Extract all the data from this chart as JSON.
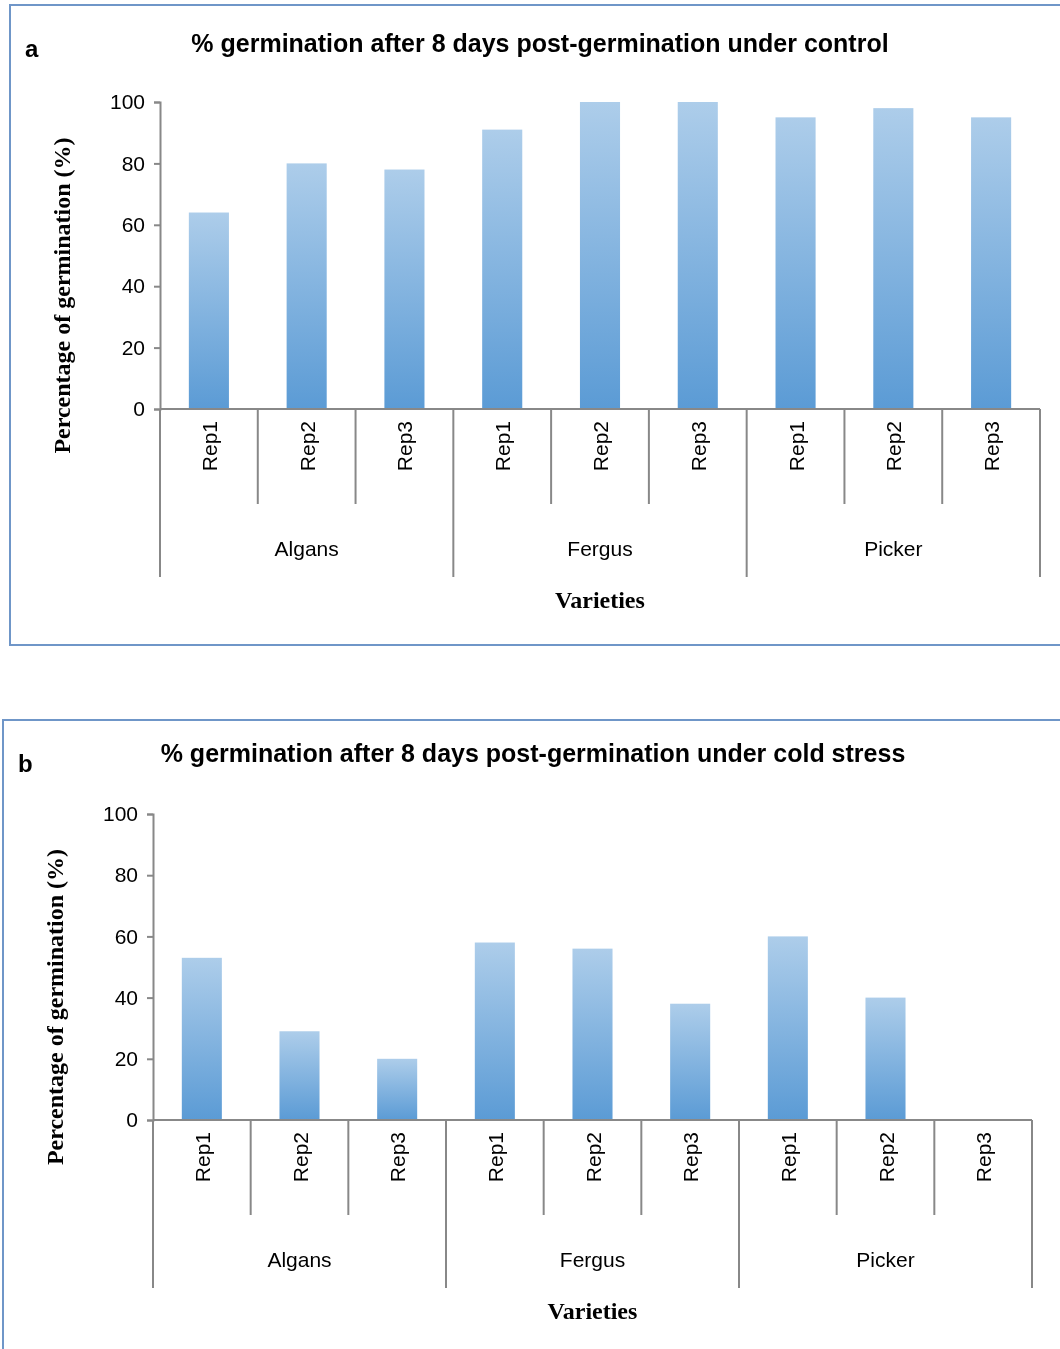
{
  "chart_data": [
    {
      "type": "bar",
      "title": "% germination after 8 days post-germination under control",
      "xlabel": "Varieties",
      "ylabel": "Percentage of germination (%)",
      "categories": [
        "Rep1",
        "Rep2",
        "Rep3",
        "Rep1",
        "Rep2",
        "Rep3",
        "Rep1",
        "Rep2",
        "Rep3"
      ],
      "values": [
        64,
        80,
        78,
        91,
        100,
        100,
        95,
        98,
        95
      ],
      "color": "#5b9bd5",
      "ylim": [
        0,
        100
      ],
      "yticks": [
        0,
        20,
        40,
        60,
        80,
        100
      ],
      "grid": false,
      "annotations": [
        "a",
        "Algans",
        "Fergus",
        "Picker"
      ]
    },
    {
      "type": "bar",
      "title": "% germination after 8 days post-germination under cold stress",
      "xlabel": "Varieties",
      "ylabel": "Percentage of germination (%)",
      "categories": [
        "Rep1",
        "Rep2",
        "Rep3",
        "Rep1",
        "Rep2",
        "Rep3",
        "Rep1",
        "Rep2",
        "Rep3"
      ],
      "values": [
        53,
        29,
        20,
        58,
        56,
        38,
        60,
        40,
        0
      ],
      "color": "#5b9bd5",
      "ylim": [
        0,
        100
      ],
      "yticks": [
        0,
        20,
        40,
        60,
        80,
        100
      ],
      "grid": false,
      "annotations": [
        "b",
        "Algans",
        "Fergus",
        "Picker"
      ]
    }
  ]
}
